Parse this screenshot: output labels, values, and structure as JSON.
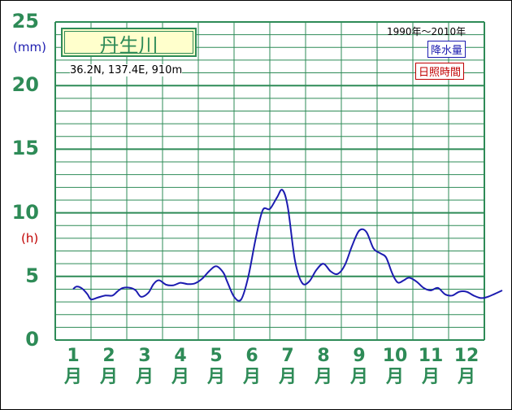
{
  "station": {
    "name": "丹生川",
    "coords": "36.2N,  137.4E,  910m",
    "period": "1990年〜2010年"
  },
  "legend": {
    "rain": "降水量",
    "sunshine": "日照時間"
  },
  "units": {
    "mm": "(mm)",
    "h": "(h)"
  },
  "colors": {
    "grid": "#2e8b57",
    "rain": "#1c1cb0",
    "sunshine": "#c00000",
    "station_box_fill": "#ffffcc"
  },
  "chart_data": {
    "type": "line",
    "ylim": [
      0,
      25
    ],
    "y_ticks": [
      0,
      5,
      10,
      15,
      20,
      25
    ],
    "x_tick_labels": [
      "1\n月",
      "2\n月",
      "3\n月",
      "4\n月",
      "5\n月",
      "6\n月",
      "7\n月",
      "8\n月",
      "9\n月",
      "10\n月",
      "11\n月",
      "12\n月"
    ],
    "grid": true,
    "series": [
      {
        "name": "降水量",
        "x": [
          0.5,
          0.6,
          0.75,
          0.9,
          1.0,
          1.2,
          1.4,
          1.6,
          1.75,
          1.9,
          2.1,
          2.25,
          2.4,
          2.6,
          2.75,
          2.9,
          3.1,
          3.3,
          3.5,
          3.7,
          3.9,
          4.1,
          4.3,
          4.5,
          4.7,
          4.8,
          5.0,
          5.2,
          5.4,
          5.6,
          5.8,
          6.0,
          6.2,
          6.35,
          6.5,
          6.7,
          6.9,
          7.1,
          7.3,
          7.5,
          7.7,
          7.9,
          8.1,
          8.3,
          8.5,
          8.7,
          8.9,
          9.1,
          9.25,
          9.4,
          9.5,
          9.6,
          9.75,
          9.9,
          10.1,
          10.3,
          10.5,
          10.7,
          10.9,
          11.1,
          11.3,
          11.5,
          11.7,
          11.9,
          12.1,
          12.5
        ],
        "values": [
          4.0,
          4.2,
          4.05,
          3.6,
          3.2,
          3.35,
          3.5,
          3.5,
          3.85,
          4.1,
          4.1,
          3.9,
          3.4,
          3.7,
          4.4,
          4.7,
          4.35,
          4.3,
          4.5,
          4.4,
          4.45,
          4.8,
          5.4,
          5.8,
          5.3,
          4.65,
          3.4,
          3.2,
          5.0,
          7.9,
          10.2,
          10.3,
          11.2,
          11.8,
          10.5,
          6.3,
          4.5,
          4.6,
          5.5,
          6.0,
          5.4,
          5.2,
          5.9,
          7.4,
          8.6,
          8.5,
          7.2,
          6.8,
          6.5,
          5.4,
          4.8,
          4.5,
          4.7,
          4.9,
          4.6,
          4.1,
          3.9,
          4.1,
          3.6,
          3.5,
          3.8,
          3.8,
          3.5,
          3.3,
          3.4,
          3.9
        ]
      }
    ]
  }
}
